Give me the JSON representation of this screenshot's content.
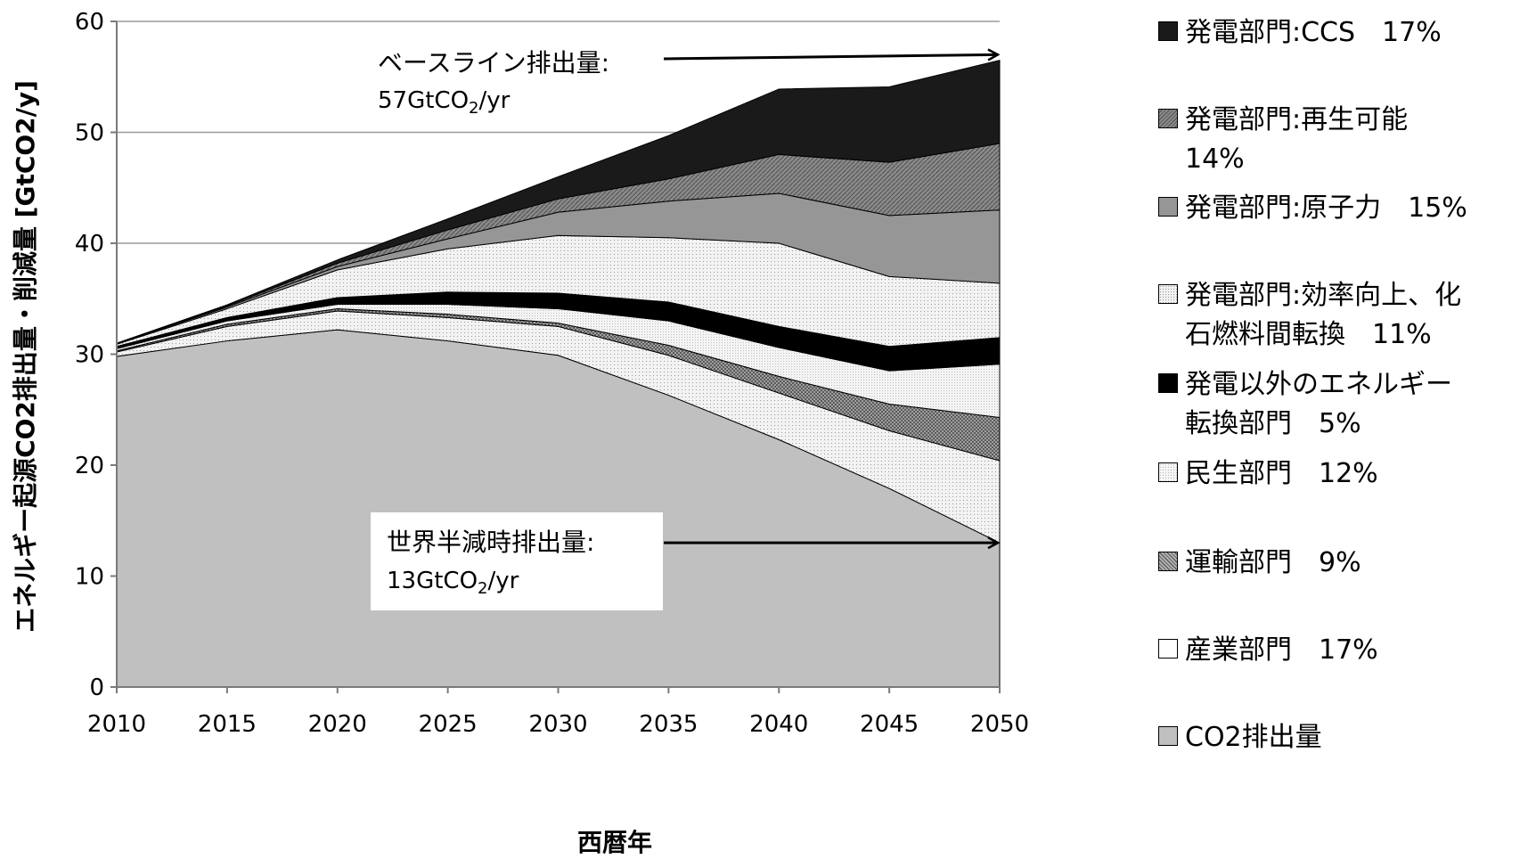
{
  "chart_data": {
    "type": "area",
    "stacked": true,
    "xlabel": "西暦年",
    "ylabel": "エネルギー起源CO2排出量・削減量 [GtCO2/y]",
    "ylim": [
      0,
      60
    ],
    "yticks": [
      0,
      10,
      20,
      30,
      40,
      50,
      60
    ],
    "x": [
      2010,
      2015,
      2020,
      2025,
      2030,
      2035,
      2040,
      2045,
      2050
    ],
    "grid": "horizontal",
    "legend_position": "right",
    "series": [
      {
        "name": "CO2排出量",
        "color": "#c0c0c0",
        "pattern": "solid",
        "values": [
          29.8,
          31.2,
          32.2,
          31.2,
          29.9,
          26.3,
          22.3,
          17.9,
          13.0
        ]
      },
      {
        "name": "産業部門 17%",
        "color": "#f6f6f6",
        "pattern": "dots",
        "values": [
          0.4,
          1.3,
          1.7,
          2.1,
          2.6,
          3.6,
          4.2,
          5.2,
          7.4
        ]
      },
      {
        "name": "運輸部門 9%",
        "color": "#8c8c8c",
        "pattern": "crosshatch",
        "values": [
          0.1,
          0.2,
          0.2,
          0.3,
          0.3,
          0.9,
          1.5,
          2.4,
          3.9
        ]
      },
      {
        "name": "民生部門 12%",
        "color": "#efefef",
        "pattern": "fine",
        "values": [
          0.2,
          0.3,
          0.4,
          0.9,
          1.3,
          2.2,
          2.6,
          3.0,
          4.8
        ]
      },
      {
        "name": "発電以外のエネルギー転換部門 5%",
        "color": "#000000",
        "pattern": "solid",
        "values": [
          0.2,
          0.3,
          0.6,
          1.1,
          1.4,
          1.7,
          1.9,
          2.2,
          2.4
        ]
      },
      {
        "name": "発電部門:効率向上、化石燃料間転換 11%",
        "color": "#e6e6e6",
        "pattern": "dots",
        "values": [
          0.2,
          0.8,
          2.5,
          3.9,
          5.2,
          5.8,
          7.5,
          6.3,
          4.9
        ]
      },
      {
        "name": "発電部門:原子力 15%",
        "color": "#969696",
        "pattern": "solid",
        "values": [
          0.05,
          0.15,
          0.3,
          0.9,
          2.1,
          3.3,
          4.5,
          5.5,
          6.6
        ]
      },
      {
        "name": "発電部門:再生可能 14%",
        "color": "#7d7d7d",
        "pattern": "diagonal",
        "values": [
          0.03,
          0.1,
          0.3,
          0.8,
          1.2,
          2.0,
          3.5,
          4.8,
          6.0
        ]
      },
      {
        "name": "発電部門:CCS 17%",
        "color": "#1a1a1a",
        "pattern": "solid",
        "values": [
          0.02,
          0.1,
          0.3,
          1.0,
          2.0,
          3.9,
          5.9,
          6.8,
          7.5
        ]
      }
    ],
    "annotations": [
      {
        "label": "ベースライン排出量:",
        "sublabel_main": "57GtCO",
        "sublabel_sub": "2",
        "sublabel_tail": "/yr",
        "value": 57
      },
      {
        "label": "世界半減時排出量:",
        "sublabel_main": "13GtCO",
        "sublabel_sub": "2",
        "sublabel_tail": "/yr",
        "value": 13
      }
    ]
  },
  "legend": [
    {
      "label": "発電部門:CCS　17%",
      "color": "#1a1a1a",
      "pattern": "solid"
    },
    {
      "label": "発電部門:再生可能\n14%",
      "color": "#7d7d7d",
      "pattern": "diagonal"
    },
    {
      "label": "発電部門:原子力　15%",
      "color": "#969696",
      "pattern": "solid"
    },
    {
      "label": "発電部門:効率向上、化\n石燃料間転換　11%",
      "color": "#e6e6e6",
      "pattern": "dots"
    },
    {
      "label": "発電以外のエネルギー\n転換部門　5%",
      "color": "#000000",
      "pattern": "solid"
    },
    {
      "label": "民生部門　12%",
      "color": "#efefef",
      "pattern": "fine"
    },
    {
      "label": "運輸部門　9%",
      "color": "#8c8c8c",
      "pattern": "crosshatch"
    },
    {
      "label": "産業部門　17%",
      "color": "#ffffff",
      "pattern": "solid"
    },
    {
      "label": "CO2排出量",
      "color": "#c0c0c0",
      "pattern": "solid"
    }
  ]
}
